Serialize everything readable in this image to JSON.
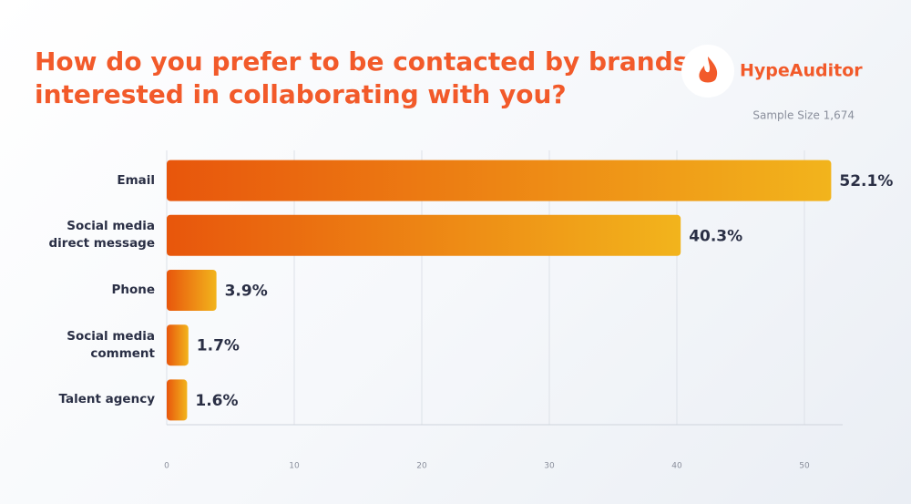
{
  "brand": "HypeAuditor",
  "chart_data": {
    "type": "hbar",
    "title": "How do you prefer to be contacted by brands interested in collaborating with you?",
    "subtitle": "Sample Size 1,674",
    "categories": [
      "Email",
      "Social media direct message",
      "Phone",
      "Social media comment",
      "Talent agency"
    ],
    "values": [
      52.1,
      40.3,
      3.9,
      1.7,
      1.6
    ],
    "value_labels": [
      "52.1%",
      "40.3%",
      "3.9%",
      "1.7%",
      "1.6%"
    ],
    "colors": [
      "#e8560c",
      "#f2b41c"
    ],
    "xlim": [
      0,
      53
    ],
    "xticks": [
      0,
      10,
      20,
      30,
      40,
      50
    ],
    "grid": true
  }
}
